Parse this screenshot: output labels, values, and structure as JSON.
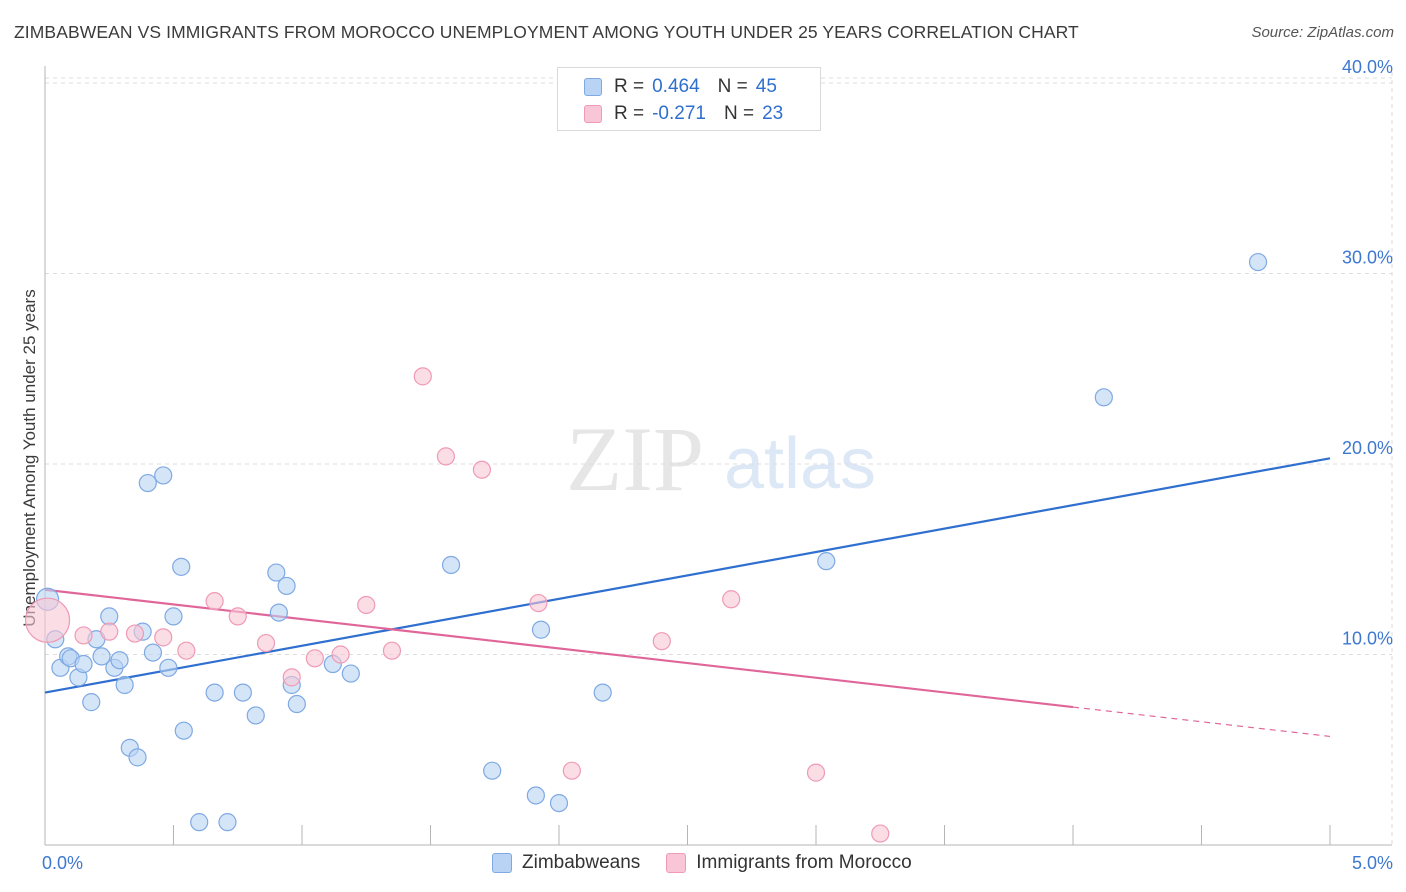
{
  "title": "ZIMBABWEAN VS IMMIGRANTS FROM MOROCCO UNEMPLOYMENT AMONG YOUTH UNDER 25 YEARS CORRELATION CHART",
  "source": "Source: ZipAtlas.com",
  "watermark": {
    "zip": "ZIP",
    "atlas": "atlas"
  },
  "legend": {
    "r_label": "R =",
    "n_label": "N =",
    "rows": [
      {
        "name": "Zimbabweans",
        "r": "0.464",
        "n": "45",
        "fill": "#b9d3f4",
        "stroke": "#7fa9e3"
      },
      {
        "name": "Immigrants from Morocco",
        "r": "-0.271",
        "n": "23",
        "fill": "#f8c6d6",
        "stroke": "#ef9ab6"
      }
    ]
  },
  "chart_data": {
    "type": "scatter",
    "title": "ZIMBABWEAN VS IMMIGRANTS FROM MOROCCO UNEMPLOYMENT AMONG YOUTH UNDER 25 YEARS CORRELATION CHART",
    "xlabel": "",
    "ylabel": "Unemployment Among Youth under 25 years",
    "xlim": [
      0,
      5
    ],
    "ylim": [
      0,
      42
    ],
    "x_tick_labels": [
      {
        "value": 0,
        "label": "0.0%"
      },
      {
        "value": 5,
        "label": "5.0%"
      }
    ],
    "y_tick_labels": [
      {
        "value": 10,
        "label": "10.0%"
      },
      {
        "value": 20,
        "label": "20.0%"
      },
      {
        "value": 30,
        "label": "30.0%"
      },
      {
        "value": 40,
        "label": "40.0%"
      }
    ],
    "grid": true,
    "colors": {
      "zimbabweans": "#2f6fcf",
      "morocco": "#e0669a",
      "axis_label": "#3d78d0"
    },
    "series": [
      {
        "name": "Zimbabweans",
        "points": [
          [
            0.01,
            12.9
          ],
          [
            0.04,
            10.8
          ],
          [
            0.06,
            9.3
          ],
          [
            0.09,
            9.9
          ],
          [
            0.1,
            9.8
          ],
          [
            0.13,
            8.8
          ],
          [
            0.15,
            9.5
          ],
          [
            0.18,
            7.5
          ],
          [
            0.2,
            10.8
          ],
          [
            0.22,
            9.9
          ],
          [
            0.25,
            12.0
          ],
          [
            0.27,
            9.3
          ],
          [
            0.29,
            9.7
          ],
          [
            0.31,
            8.4
          ],
          [
            0.33,
            5.1
          ],
          [
            0.36,
            4.6
          ],
          [
            0.38,
            11.2
          ],
          [
            0.4,
            19.0
          ],
          [
            0.42,
            10.1
          ],
          [
            0.46,
            19.4
          ],
          [
            0.48,
            9.3
          ],
          [
            0.5,
            12.0
          ],
          [
            0.53,
            14.6
          ],
          [
            0.54,
            6.0
          ],
          [
            0.6,
            1.2
          ],
          [
            0.66,
            8.0
          ],
          [
            0.71,
            1.2
          ],
          [
            0.77,
            8.0
          ],
          [
            0.82,
            6.8
          ],
          [
            0.9,
            14.3
          ],
          [
            0.91,
            12.2
          ],
          [
            0.94,
            13.6
          ],
          [
            0.96,
            8.4
          ],
          [
            0.98,
            7.4
          ],
          [
            1.12,
            9.5
          ],
          [
            1.19,
            9.0
          ],
          [
            1.58,
            14.7
          ],
          [
            1.74,
            3.9
          ],
          [
            1.91,
            2.6
          ],
          [
            1.93,
            11.3
          ],
          [
            2.0,
            2.2
          ],
          [
            2.17,
            8.0
          ],
          [
            3.04,
            14.9
          ],
          [
            4.12,
            23.5
          ],
          [
            4.72,
            30.6
          ]
        ],
        "trend": {
          "x0": 0,
          "y0": 8.0,
          "x1": 5.0,
          "y1": 20.3
        }
      },
      {
        "name": "Immigrants from Morocco",
        "points": [
          [
            0.01,
            11.8
          ],
          [
            0.15,
            11.0
          ],
          [
            0.25,
            11.2
          ],
          [
            0.35,
            11.1
          ],
          [
            0.46,
            10.9
          ],
          [
            0.55,
            10.2
          ],
          [
            0.66,
            12.8
          ],
          [
            0.75,
            12.0
          ],
          [
            0.86,
            10.6
          ],
          [
            0.96,
            8.8
          ],
          [
            1.05,
            9.8
          ],
          [
            1.15,
            10.0
          ],
          [
            1.25,
            12.6
          ],
          [
            1.35,
            10.2
          ],
          [
            1.47,
            24.6
          ],
          [
            1.56,
            20.4
          ],
          [
            1.7,
            19.7
          ],
          [
            1.92,
            12.7
          ],
          [
            2.05,
            3.9
          ],
          [
            2.4,
            10.7
          ],
          [
            2.67,
            12.9
          ],
          [
            3.0,
            3.8
          ],
          [
            3.25,
            0.6
          ]
        ],
        "trend": {
          "x0": 0,
          "y0": 13.4,
          "x1": 5.0,
          "y1": 5.7,
          "solid_until_x": 4.0
        }
      }
    ]
  }
}
